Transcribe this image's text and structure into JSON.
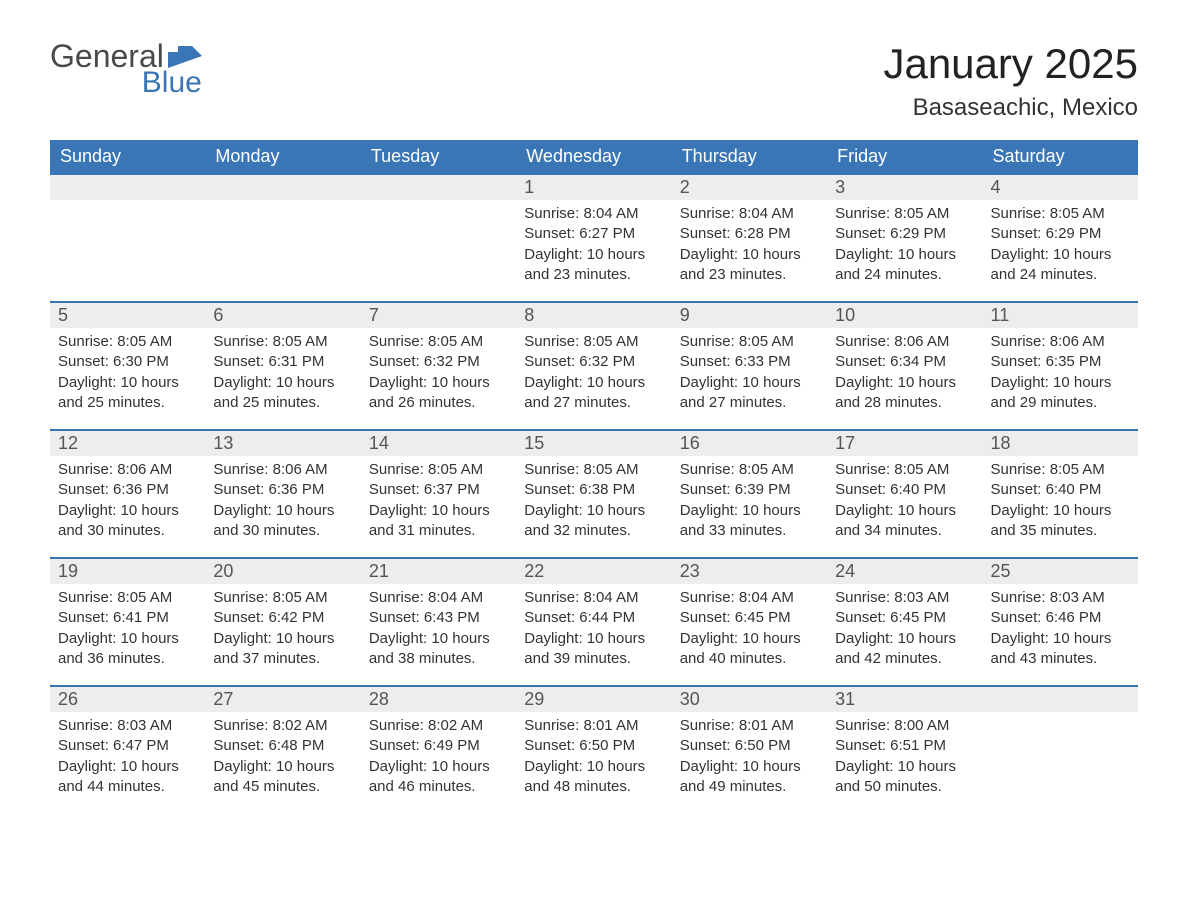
{
  "logo": {
    "text1": "General",
    "text2": "Blue",
    "text1_color": "#4a4a4a",
    "text2_color": "#3a76b5",
    "shape_color": "#3a76b5"
  },
  "header": {
    "month_title": "January 2025",
    "location": "Basaseachic, Mexico",
    "title_fontsize": 42,
    "location_fontsize": 24
  },
  "calendar": {
    "header_bg": "#3a76b5",
    "header_text_color": "#ffffff",
    "daynum_bg": "#ededed",
    "daynum_color": "#555555",
    "cell_border_color": "#3a76b5",
    "body_text_color": "#333333",
    "columns": [
      "Sunday",
      "Monday",
      "Tuesday",
      "Wednesday",
      "Thursday",
      "Friday",
      "Saturday"
    ],
    "weeks": [
      [
        null,
        null,
        null,
        {
          "day": "1",
          "sunrise": "8:04 AM",
          "sunset": "6:27 PM",
          "daylight": "10 hours and 23 minutes."
        },
        {
          "day": "2",
          "sunrise": "8:04 AM",
          "sunset": "6:28 PM",
          "daylight": "10 hours and 23 minutes."
        },
        {
          "day": "3",
          "sunrise": "8:05 AM",
          "sunset": "6:29 PM",
          "daylight": "10 hours and 24 minutes."
        },
        {
          "day": "4",
          "sunrise": "8:05 AM",
          "sunset": "6:29 PM",
          "daylight": "10 hours and 24 minutes."
        }
      ],
      [
        {
          "day": "5",
          "sunrise": "8:05 AM",
          "sunset": "6:30 PM",
          "daylight": "10 hours and 25 minutes."
        },
        {
          "day": "6",
          "sunrise": "8:05 AM",
          "sunset": "6:31 PM",
          "daylight": "10 hours and 25 minutes."
        },
        {
          "day": "7",
          "sunrise": "8:05 AM",
          "sunset": "6:32 PM",
          "daylight": "10 hours and 26 minutes."
        },
        {
          "day": "8",
          "sunrise": "8:05 AM",
          "sunset": "6:32 PM",
          "daylight": "10 hours and 27 minutes."
        },
        {
          "day": "9",
          "sunrise": "8:05 AM",
          "sunset": "6:33 PM",
          "daylight": "10 hours and 27 minutes."
        },
        {
          "day": "10",
          "sunrise": "8:06 AM",
          "sunset": "6:34 PM",
          "daylight": "10 hours and 28 minutes."
        },
        {
          "day": "11",
          "sunrise": "8:06 AM",
          "sunset": "6:35 PM",
          "daylight": "10 hours and 29 minutes."
        }
      ],
      [
        {
          "day": "12",
          "sunrise": "8:06 AM",
          "sunset": "6:36 PM",
          "daylight": "10 hours and 30 minutes."
        },
        {
          "day": "13",
          "sunrise": "8:06 AM",
          "sunset": "6:36 PM",
          "daylight": "10 hours and 30 minutes."
        },
        {
          "day": "14",
          "sunrise": "8:05 AM",
          "sunset": "6:37 PM",
          "daylight": "10 hours and 31 minutes."
        },
        {
          "day": "15",
          "sunrise": "8:05 AM",
          "sunset": "6:38 PM",
          "daylight": "10 hours and 32 minutes."
        },
        {
          "day": "16",
          "sunrise": "8:05 AM",
          "sunset": "6:39 PM",
          "daylight": "10 hours and 33 minutes."
        },
        {
          "day": "17",
          "sunrise": "8:05 AM",
          "sunset": "6:40 PM",
          "daylight": "10 hours and 34 minutes."
        },
        {
          "day": "18",
          "sunrise": "8:05 AM",
          "sunset": "6:40 PM",
          "daylight": "10 hours and 35 minutes."
        }
      ],
      [
        {
          "day": "19",
          "sunrise": "8:05 AM",
          "sunset": "6:41 PM",
          "daylight": "10 hours and 36 minutes."
        },
        {
          "day": "20",
          "sunrise": "8:05 AM",
          "sunset": "6:42 PM",
          "daylight": "10 hours and 37 minutes."
        },
        {
          "day": "21",
          "sunrise": "8:04 AM",
          "sunset": "6:43 PM",
          "daylight": "10 hours and 38 minutes."
        },
        {
          "day": "22",
          "sunrise": "8:04 AM",
          "sunset": "6:44 PM",
          "daylight": "10 hours and 39 minutes."
        },
        {
          "day": "23",
          "sunrise": "8:04 AM",
          "sunset": "6:45 PM",
          "daylight": "10 hours and 40 minutes."
        },
        {
          "day": "24",
          "sunrise": "8:03 AM",
          "sunset": "6:45 PM",
          "daylight": "10 hours and 42 minutes."
        },
        {
          "day": "25",
          "sunrise": "8:03 AM",
          "sunset": "6:46 PM",
          "daylight": "10 hours and 43 minutes."
        }
      ],
      [
        {
          "day": "26",
          "sunrise": "8:03 AM",
          "sunset": "6:47 PM",
          "daylight": "10 hours and 44 minutes."
        },
        {
          "day": "27",
          "sunrise": "8:02 AM",
          "sunset": "6:48 PM",
          "daylight": "10 hours and 45 minutes."
        },
        {
          "day": "28",
          "sunrise": "8:02 AM",
          "sunset": "6:49 PM",
          "daylight": "10 hours and 46 minutes."
        },
        {
          "day": "29",
          "sunrise": "8:01 AM",
          "sunset": "6:50 PM",
          "daylight": "10 hours and 48 minutes."
        },
        {
          "day": "30",
          "sunrise": "8:01 AM",
          "sunset": "6:50 PM",
          "daylight": "10 hours and 49 minutes."
        },
        {
          "day": "31",
          "sunrise": "8:00 AM",
          "sunset": "6:51 PM",
          "daylight": "10 hours and 50 minutes."
        },
        null
      ]
    ],
    "labels": {
      "sunrise": "Sunrise:",
      "sunset": "Sunset:",
      "daylight": "Daylight:"
    }
  }
}
